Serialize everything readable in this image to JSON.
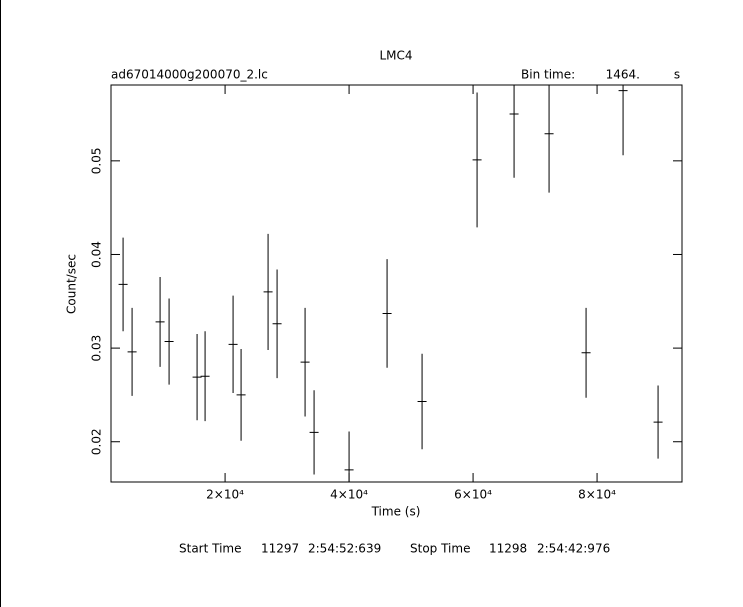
{
  "chart_data": {
    "type": "errorbar",
    "title": "LMC4",
    "file_name": "ad67014000g200070_2.lc",
    "bin_time_label": "Bin time:",
    "bin_time": "1464.",
    "bin_time_unit": "s",
    "x_label": "Time (s)",
    "y_label": "Count/sec",
    "footer": {
      "start_label": "Start Time",
      "start_day": "11297",
      "start_time": "2:54:52:639",
      "stop_label": "Stop Time",
      "stop_day": "11298",
      "stop_time": "2:54:42:976"
    },
    "xlim": [
      1600,
      93700
    ],
    "ylim": [
      0.0157,
      0.0581
    ],
    "xticks": [
      {
        "value": 20000,
        "label": "2×10⁴"
      },
      {
        "value": 40000,
        "label": "4×10⁴"
      },
      {
        "value": 60000,
        "label": "6×10⁴"
      },
      {
        "value": 80000,
        "label": "8×10⁴"
      }
    ],
    "yticks": [
      0.02,
      0.03,
      0.04,
      0.05
    ],
    "series": [
      {
        "color": "#000000",
        "x": [
          3548,
          5000,
          9516,
          10968,
          15484,
          16774,
          21290,
          22581,
          26935,
          28387,
          32903,
          34355,
          40000,
          46129,
          51774,
          60645,
          66613,
          72258,
          78226,
          84194,
          89839
        ],
        "values": [
          0.0368,
          0.0296,
          0.0328,
          0.0307,
          0.0269,
          0.027,
          0.0304,
          0.025,
          0.036,
          0.0326,
          0.0285,
          0.021,
          0.017,
          0.0337,
          0.0243,
          0.0501,
          0.055,
          0.0529,
          0.0295,
          0.0575,
          0.0221
        ],
        "errors": [
          0.005,
          0.0047,
          0.0048,
          0.0046,
          0.0046,
          0.0048,
          0.0052,
          0.0049,
          0.0062,
          0.0058,
          0.0058,
          0.0045,
          0.0041,
          0.0058,
          0.0051,
          0.0072,
          0.0068,
          0.0063,
          0.0048,
          0.0069,
          0.0039
        ]
      }
    ]
  }
}
